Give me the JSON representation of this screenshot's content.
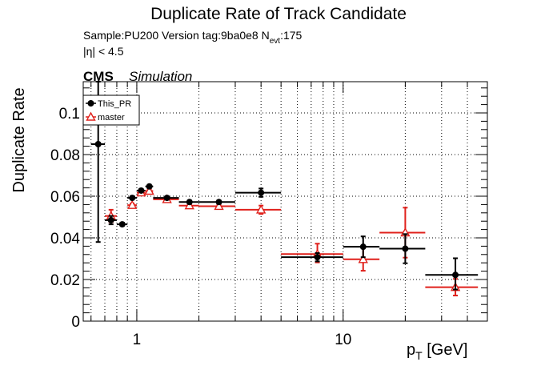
{
  "header": {
    "title": "Duplicate Rate of Track Candidate",
    "sample_line": "Sample:PU200   Version tag:9ba0e8  N",
    "nevt_sub": "evt",
    "nevt_value": ":175",
    "eta_cut": "|η| < 4.5",
    "cms": "CMS",
    "simulation": "Simulation"
  },
  "chart_data": {
    "type": "scatter",
    "title": "Duplicate Rate of Track Candidate",
    "xlabel": "p",
    "xlabel_sub": "T",
    "xlabel_unit": " [GeV]",
    "ylabel": "Duplicate Rate",
    "xscale": "log",
    "xlim": [
      0.55,
      50
    ],
    "ylim": [
      0,
      0.115
    ],
    "grid": true,
    "legend_position": "top-left",
    "x_tick_labels": [
      {
        "value": 1,
        "label": "1"
      },
      {
        "value": 10,
        "label": "10"
      }
    ],
    "y_tick_labels": [
      {
        "value": 0,
        "label": "0"
      },
      {
        "value": 0.02,
        "label": "0.02"
      },
      {
        "value": 0.04,
        "label": "0.04"
      },
      {
        "value": 0.06,
        "label": "0.06"
      },
      {
        "value": 0.08,
        "label": "0.08"
      },
      {
        "value": 0.1,
        "label": "0.1"
      }
    ],
    "series": [
      {
        "name": "This_PR",
        "color": "#000000",
        "marker": "filled-circle",
        "points": [
          {
            "x": 0.65,
            "xlo": 0.6,
            "xhi": 0.7,
            "y": 0.085,
            "elo": 0.047,
            "ehi": 0.03
          },
          {
            "x": 0.75,
            "xlo": 0.7,
            "xhi": 0.8,
            "y": 0.0485,
            "elo": 0.002,
            "ehi": 0.002
          },
          {
            "x": 0.85,
            "xlo": 0.8,
            "xhi": 0.9,
            "y": 0.0465,
            "elo": 0.0008,
            "ehi": 0.0008
          },
          {
            "x": 0.95,
            "xlo": 0.9,
            "xhi": 1.0,
            "y": 0.0592,
            "elo": 0.0008,
            "ehi": 0.0008
          },
          {
            "x": 1.05,
            "xlo": 1.0,
            "xhi": 1.1,
            "y": 0.0627,
            "elo": 0.0008,
            "ehi": 0.0008
          },
          {
            "x": 1.15,
            "xlo": 1.1,
            "xhi": 1.2,
            "y": 0.0647,
            "elo": 0.0008,
            "ehi": 0.0008
          },
          {
            "x": 1.4,
            "xlo": 1.2,
            "xhi": 1.6,
            "y": 0.0592,
            "elo": 0.0008,
            "ehi": 0.0008
          },
          {
            "x": 1.8,
            "xlo": 1.6,
            "xhi": 2.0,
            "y": 0.0572,
            "elo": 0.0008,
            "ehi": 0.0008
          },
          {
            "x": 2.5,
            "xlo": 2.0,
            "xhi": 3.0,
            "y": 0.0572,
            "elo": 0.0008,
            "ehi": 0.0008
          },
          {
            "x": 4.0,
            "xlo": 3.0,
            "xhi": 5.0,
            "y": 0.0617,
            "elo": 0.002,
            "ehi": 0.002
          },
          {
            "x": 7.5,
            "xlo": 5.0,
            "xhi": 10.0,
            "y": 0.0307,
            "elo": 0.002,
            "ehi": 0.002
          },
          {
            "x": 12.5,
            "xlo": 10.0,
            "xhi": 15.0,
            "y": 0.0357,
            "elo": 0.005,
            "ehi": 0.005
          },
          {
            "x": 20.0,
            "xlo": 15.0,
            "xhi": 25.0,
            "y": 0.0348,
            "elo": 0.007,
            "ehi": 0.007
          },
          {
            "x": 35.0,
            "xlo": 25.0,
            "xhi": 45.0,
            "y": 0.0222,
            "elo": 0.007,
            "ehi": 0.008
          }
        ]
      },
      {
        "name": "master",
        "color": "#e0201b",
        "marker": "open-triangle",
        "points": [
          {
            "x": 0.75,
            "xlo": 0.7,
            "xhi": 0.8,
            "y": 0.0505,
            "elo": 0.003,
            "ehi": 0.003
          },
          {
            "x": 0.95,
            "xlo": 0.9,
            "xhi": 1.0,
            "y": 0.0557,
            "elo": 0.0008,
            "ehi": 0.0008
          },
          {
            "x": 1.05,
            "xlo": 1.0,
            "xhi": 1.1,
            "y": 0.0617,
            "elo": 0.0008,
            "ehi": 0.0008
          },
          {
            "x": 1.15,
            "xlo": 1.1,
            "xhi": 1.2,
            "y": 0.0625,
            "elo": 0.0008,
            "ehi": 0.0008
          },
          {
            "x": 1.4,
            "xlo": 1.2,
            "xhi": 1.6,
            "y": 0.0585,
            "elo": 0.0008,
            "ehi": 0.0008
          },
          {
            "x": 1.8,
            "xlo": 1.6,
            "xhi": 2.0,
            "y": 0.0555,
            "elo": 0.0008,
            "ehi": 0.0008
          },
          {
            "x": 2.5,
            "xlo": 2.0,
            "xhi": 3.0,
            "y": 0.0552,
            "elo": 0.0008,
            "ehi": 0.0008
          },
          {
            "x": 4.0,
            "xlo": 3.0,
            "xhi": 5.0,
            "y": 0.0535,
            "elo": 0.002,
            "ehi": 0.002
          },
          {
            "x": 7.5,
            "xlo": 5.0,
            "xhi": 10.0,
            "y": 0.0322,
            "elo": 0.004,
            "ehi": 0.005
          },
          {
            "x": 12.5,
            "xlo": 10.0,
            "xhi": 15.0,
            "y": 0.0297,
            "elo": 0.0055,
            "ehi": 0.0055
          },
          {
            "x": 20.0,
            "xlo": 15.0,
            "xhi": 25.0,
            "y": 0.0425,
            "elo": 0.012,
            "ehi": 0.012
          },
          {
            "x": 35.0,
            "xlo": 25.0,
            "xhi": 45.0,
            "y": 0.0163,
            "elo": 0.004,
            "ehi": 0.004
          }
        ]
      }
    ]
  }
}
